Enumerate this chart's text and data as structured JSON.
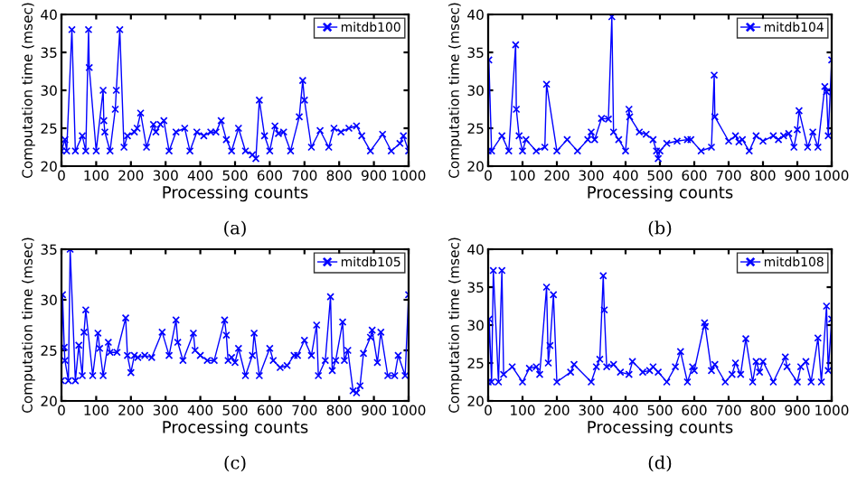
{
  "chart_data": [
    {
      "type": "line",
      "xlabel": "Processing counts",
      "ylabel": "Computation time (msec)",
      "xlim": [
        0,
        1000
      ],
      "xticks": [
        0,
        100,
        200,
        300,
        400,
        500,
        600,
        700,
        800,
        900,
        1000
      ],
      "ylim": [
        20,
        40
      ],
      "yticks": [
        20,
        25,
        30,
        35,
        40
      ],
      "grid": false,
      "legend": "top right",
      "marker": "cross",
      "line_style": "solid",
      "annotations": [
        "(a)"
      ],
      "series": [
        {
          "name": "mitdb100",
          "color": "#0000ff",
          "x": [
            0,
            10,
            15,
            30,
            40,
            60,
            70,
            78,
            80,
            100,
            120,
            122,
            125,
            140,
            155,
            158,
            168,
            180,
            190,
            210,
            218,
            228,
            245,
            265,
            272,
            285,
            295,
            310,
            330,
            355,
            370,
            390,
            410,
            430,
            445,
            460,
            475,
            490,
            510,
            530,
            550,
            560,
            570,
            585,
            600,
            615,
            625,
            640,
            660,
            685,
            695,
            700,
            720,
            745,
            770,
            785,
            805,
            828,
            850,
            865,
            890,
            925,
            950,
            975,
            985,
            1000
          ],
          "values": [
            22,
            23.5,
            22,
            38,
            22,
            24,
            22,
            38,
            33,
            22,
            30,
            26,
            24.5,
            22,
            27.5,
            30,
            38,
            22.5,
            24,
            24.5,
            25,
            27,
            22.5,
            25.5,
            24.5,
            25.5,
            26,
            22,
            24.5,
            25,
            22,
            24.5,
            24,
            24.5,
            24.5,
            26,
            23.5,
            22,
            25,
            22,
            21.5,
            21,
            28.7,
            24,
            22,
            25.3,
            24.3,
            24.5,
            22,
            26.5,
            31.3,
            28.7,
            22.5,
            24.7,
            22.5,
            25,
            24.5,
            25,
            25.3,
            24,
            22,
            24.2,
            22,
            23,
            24,
            22
          ]
        }
      ]
    },
    {
      "type": "line",
      "xlabel": "Processing counts",
      "ylabel": "Computation time (msec)",
      "xlim": [
        0,
        1000
      ],
      "xticks": [
        0,
        100,
        200,
        300,
        400,
        500,
        600,
        700,
        800,
        900,
        1000
      ],
      "ylim": [
        20,
        40
      ],
      "yticks": [
        20,
        25,
        30,
        35,
        40
      ],
      "grid": false,
      "legend": "top right",
      "marker": "cross",
      "line_style": "solid",
      "annotations": [
        "(b)"
      ],
      "series": [
        {
          "name": "mitdb104",
          "color": "#0000ff",
          "x": [
            0,
            2,
            10,
            40,
            60,
            80,
            82,
            90,
            100,
            110,
            140,
            165,
            170,
            200,
            230,
            260,
            290,
            300,
            310,
            330,
            350,
            360,
            365,
            380,
            400,
            410,
            412,
            440,
            460,
            480,
            490,
            495,
            500,
            520,
            550,
            580,
            590,
            620,
            650,
            658,
            660,
            700,
            720,
            730,
            740,
            760,
            780,
            800,
            830,
            845,
            860,
            875,
            890,
            900,
            905,
            930,
            945,
            960,
            980,
            985,
            990,
            1000
          ],
          "values": [
            22,
            34,
            22,
            24,
            22,
            36,
            27.5,
            24,
            22,
            23.5,
            22,
            22.5,
            30.8,
            22,
            23.5,
            22,
            23.5,
            24.5,
            23.5,
            26.3,
            26.2,
            39.7,
            24.5,
            23.5,
            22,
            27.5,
            26.5,
            24.5,
            24.2,
            23.5,
            22,
            21,
            22,
            23,
            23.3,
            23.5,
            23.5,
            22,
            22.5,
            32,
            26.5,
            23.3,
            24,
            23.2,
            23.5,
            22,
            24,
            23.3,
            24,
            23.5,
            24,
            24.3,
            22.5,
            24.8,
            27.3,
            22.5,
            24.5,
            22.5,
            30.5,
            29.8,
            24,
            34
          ]
        }
      ]
    },
    {
      "type": "line",
      "xlabel": "Processing counts",
      "ylabel": "Computation time (msec)",
      "xlim": [
        0,
        1000
      ],
      "xticks": [
        0,
        100,
        200,
        300,
        400,
        500,
        600,
        700,
        800,
        900,
        1000
      ],
      "ylim": [
        20,
        35
      ],
      "yticks": [
        20,
        25,
        30,
        35
      ],
      "grid": false,
      "legend": "top right",
      "marker": "cross",
      "line_style": "solid",
      "annotations": [
        "(c)"
      ],
      "series": [
        {
          "name": "mitdb105",
          "color": "#0000ff",
          "x": [
            0,
            3,
            8,
            10,
            20,
            25,
            40,
            50,
            60,
            65,
            70,
            90,
            105,
            110,
            120,
            135,
            140,
            160,
            185,
            190,
            200,
            210,
            220,
            240,
            260,
            290,
            310,
            330,
            335,
            350,
            380,
            385,
            400,
            420,
            440,
            470,
            475,
            480,
            490,
            500,
            510,
            530,
            550,
            555,
            570,
            600,
            610,
            630,
            650,
            670,
            680,
            700,
            720,
            735,
            740,
            760,
            775,
            780,
            790,
            810,
            815,
            825,
            840,
            850,
            860,
            870,
            890,
            895,
            910,
            920,
            940,
            960,
            970,
            990,
            1000
          ],
          "values": [
            22,
            30.5,
            25.3,
            24,
            22,
            35,
            22,
            25.5,
            22.5,
            26.8,
            29,
            22.5,
            26.7,
            25.2,
            22.5,
            25.8,
            24.8,
            24.8,
            28.2,
            24.5,
            22.8,
            24.5,
            24.3,
            24.5,
            24.3,
            26.8,
            24.5,
            28,
            25.8,
            24,
            26.7,
            25,
            24.5,
            24,
            24,
            28,
            26.5,
            24,
            24.3,
            23.8,
            25.2,
            22.5,
            24.5,
            26.7,
            22.5,
            25.2,
            24,
            23.3,
            23.5,
            24.5,
            24.5,
            26,
            24.5,
            27.5,
            22.5,
            24,
            30.3,
            23,
            24,
            27.8,
            24,
            25,
            21,
            20.8,
            21.5,
            24.7,
            26.3,
            27,
            23.8,
            26.8,
            22.5,
            22.5,
            24.5,
            22.5,
            30.5
          ]
        }
      ]
    },
    {
      "type": "line",
      "xlabel": "Processing counts",
      "ylabel": "Computation time (msec)",
      "xlim": [
        0,
        1000
      ],
      "xticks": [
        0,
        100,
        200,
        300,
        400,
        500,
        600,
        700,
        800,
        900,
        1000
      ],
      "ylim": [
        20,
        40
      ],
      "yticks": [
        20,
        25,
        30,
        35,
        40
      ],
      "grid": false,
      "legend": "top right",
      "marker": "cross",
      "line_style": "solid",
      "annotations": [
        "(d)"
      ],
      "series": [
        {
          "name": "mitdb108",
          "color": "#0000ff",
          "x": [
            0,
            3,
            10,
            15,
            30,
            40,
            45,
            70,
            100,
            120,
            140,
            150,
            170,
            175,
            180,
            190,
            200,
            240,
            250,
            300,
            315,
            325,
            335,
            338,
            345,
            365,
            385,
            410,
            420,
            450,
            470,
            480,
            495,
            520,
            545,
            560,
            580,
            595,
            600,
            630,
            632,
            650,
            660,
            690,
            710,
            720,
            735,
            750,
            770,
            780,
            790,
            800,
            830,
            865,
            870,
            900,
            910,
            925,
            940,
            960,
            970,
            985,
            990,
            1000
          ],
          "values": [
            22.5,
            30.8,
            22.5,
            37.2,
            22.5,
            37.2,
            23.5,
            24.5,
            22.5,
            24.3,
            24.5,
            23.5,
            35,
            25,
            27.3,
            34,
            22.5,
            23.8,
            24.8,
            22.5,
            24.5,
            25.5,
            36.5,
            32,
            24.5,
            24.8,
            23.8,
            23.5,
            25.2,
            23.8,
            24,
            24.5,
            23.8,
            22.5,
            24.5,
            26.5,
            22.5,
            24.5,
            24,
            30.3,
            29.8,
            24,
            24.8,
            22.5,
            23.5,
            25,
            23.5,
            28.2,
            22.5,
            25.2,
            23.8,
            25.2,
            22.5,
            25.8,
            24.5,
            22.5,
            24.5,
            25.2,
            22.5,
            28.3,
            22.5,
            32.5,
            24,
            30.8
          ]
        }
      ]
    }
  ]
}
